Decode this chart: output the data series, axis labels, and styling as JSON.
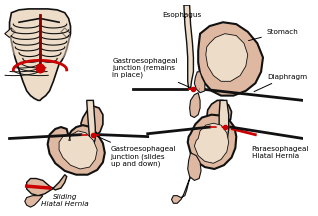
{
  "bg": "#ffffff",
  "skin": "#deb8a0",
  "skin_light": "#eddcc8",
  "outline": "#111111",
  "red": "#cc0000",
  "dark_red": "#880000",
  "label_color": "#000000",
  "fs": 5.2,
  "labels": {
    "esophagus": "Esophagus",
    "gastro_remains": "Gastroesophageal\njunction (remains\nin place)",
    "stomach": "Stomach",
    "diaphragm": "Diaphragm",
    "gastro_slides": "Gastroesophageal\njunction (slides\nup and down)",
    "sliding": "Sliding\nHiatal Hernia",
    "paraeso": "Paraesophageal\nHiatal Hernia"
  }
}
